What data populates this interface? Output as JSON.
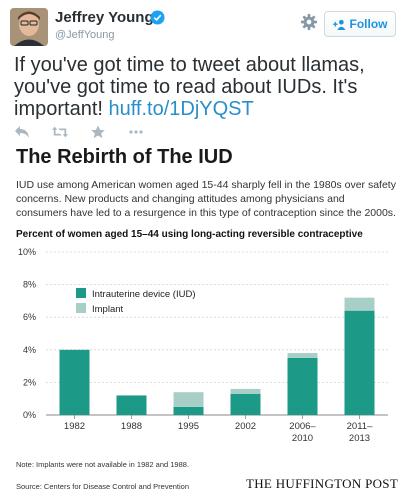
{
  "tweet": {
    "author_name": "Jeffrey Young",
    "author_handle": "@JeffYoung",
    "follow_label": "Follow",
    "text_before_link": "If you've got time to tweet about llamas, you've got time to read about IUDs. It's important! ",
    "link_text": "huff.to/1DjYQST",
    "icons": [
      "settings-gear-icon",
      "follow-add-person-icon",
      "reply-icon",
      "retweet-icon",
      "favorite-star-icon",
      "verified-badge-icon"
    ],
    "colors": {
      "link": "#2a8ecb",
      "follow": "#1b95e0"
    }
  },
  "infographic": {
    "headline": "The Rebirth of The IUD",
    "description": "IUD use among American women aged 15-44 sharply fell in the 1980s over safety concerns. New products and changing attitudes among physicians and consumers have led to a resurgence in this type of contraception since the 2000s.",
    "chart_heading": "Percent of women aged 15–44 using long-acting reversible contraceptive",
    "note": "Note: Implants were not available in 1982 and 1988.",
    "source": "Source: Centers for Disease Control and Prevention",
    "brand": "THE HUFFINGTON POST"
  },
  "chart_data": {
    "type": "bar",
    "stacked": true,
    "categories": [
      [
        "1982"
      ],
      [
        "1988"
      ],
      [
        "1995"
      ],
      [
        "2002"
      ],
      [
        "2006–",
        "2010"
      ],
      [
        "2011–",
        "2013"
      ]
    ],
    "series": [
      {
        "name": "Intrauterine device (IUD)",
        "color": "#1c9a87",
        "values": [
          4.0,
          1.2,
          0.5,
          1.3,
          3.5,
          6.4
        ]
      },
      {
        "name": "Implant",
        "color": "#a7cfc7",
        "values": [
          0.0,
          0.0,
          0.9,
          0.3,
          0.3,
          0.8
        ]
      }
    ],
    "yticks": [
      "0%",
      "2%",
      "4%",
      "6%",
      "8%",
      "10%"
    ],
    "ylim": [
      0,
      10
    ],
    "grid": true,
    "legend_position": "top-left"
  }
}
